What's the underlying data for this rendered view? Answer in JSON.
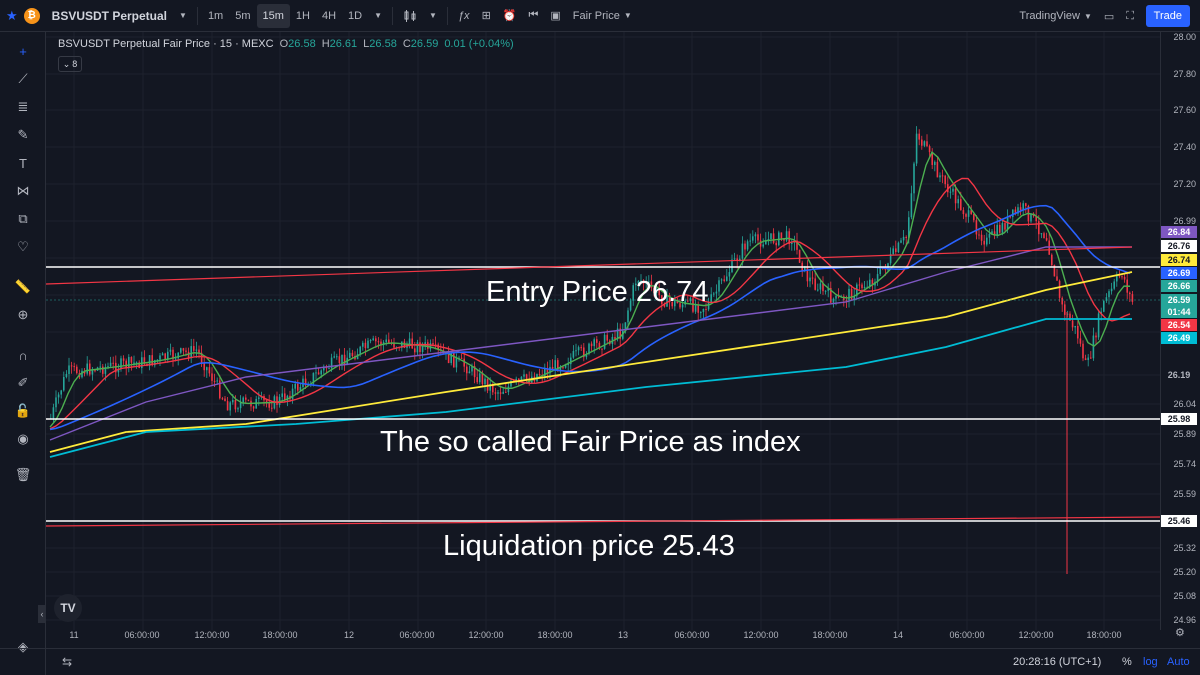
{
  "topbar": {
    "symbol_icon": "bitcoin-icon",
    "symbol": "BSVUSDT Perpetual",
    "timeframes": [
      "1m",
      "5m",
      "15m",
      "1H",
      "4H",
      "1D"
    ],
    "active_timeframe": "15m",
    "price_type": "Fair Price",
    "brand": "TradingView",
    "trade_label": "Trade"
  },
  "legend": {
    "title": "BSVUSDT Perpetual Fair Price · 15 · MEXC",
    "o_key": "O",
    "o_val": "26.58",
    "h_key": "H",
    "h_val": "26.61",
    "l_key": "L",
    "l_val": "26.58",
    "c_key": "C",
    "c_val": "26.59",
    "change": "0.01 (+0.04%)",
    "indicator_count": "8"
  },
  "annotations": {
    "entry": "Entry Price 26.74",
    "fair": "The so called Fair Price as index",
    "liquidation": "Liquidation price 25.43"
  },
  "price_axis": {
    "ticks": [
      "28.00",
      "27.80",
      "27.60",
      "27.40",
      "27.20",
      "26.99",
      "26.04",
      "25.89",
      "25.74",
      "25.59",
      "25.32",
      "25.20",
      "25.08",
      "24.96"
    ],
    "badges": [
      {
        "label": "26.84",
        "bg": "#7e57c2",
        "fg": "#ffffff"
      },
      {
        "label": "26.76",
        "bg": "#ffffff",
        "fg": "#131722"
      },
      {
        "label": "26.74",
        "bg": "#ffeb3b",
        "fg": "#131722"
      },
      {
        "label": "26.69",
        "bg": "#2962ff",
        "fg": "#ffffff"
      },
      {
        "label": "26.66",
        "bg": "#26a69a",
        "fg": "#ffffff"
      },
      {
        "label": "26.59",
        "bg": "#26a69a",
        "fg": "#ffffff"
      },
      {
        "label": "01:44",
        "bg": "#26a69a",
        "fg": "#ffffff"
      },
      {
        "label": "26.54",
        "bg": "#f23645",
        "fg": "#ffffff"
      },
      {
        "label": "26.49",
        "bg": "#00bcd4",
        "fg": "#ffffff"
      },
      {
        "label": "26.19",
        "bg": "",
        "fg": "#b2b5be"
      },
      {
        "label": "25.98",
        "bg": "#ffffff",
        "fg": "#131722"
      },
      {
        "label": "25.46",
        "bg": "#ffffff",
        "fg": "#131722"
      }
    ]
  },
  "time_axis": [
    "11",
    "06:00:00",
    "12:00:00",
    "18:00:00",
    "12",
    "06:00:00",
    "12:00:00",
    "18:00:00",
    "13",
    "06:00:00",
    "12:00:00",
    "18:00:00",
    "14",
    "06:00:00",
    "12:00:00",
    "18:00:00"
  ],
  "bottombar": {
    "clock": "20:28:16 (UTC+1)",
    "percent": "%",
    "log": "log",
    "auto": "Auto"
  },
  "colors": {
    "up": "#26a69a",
    "down": "#f23645",
    "ma_green": "#4caf50",
    "ma_red": "#f23645",
    "ma_blue": "#2962ff",
    "ma_purple": "#7e57c2",
    "ma_yellow": "#ffeb3b",
    "ma_cyan": "#00bcd4",
    "accent": "#2962ff"
  }
}
